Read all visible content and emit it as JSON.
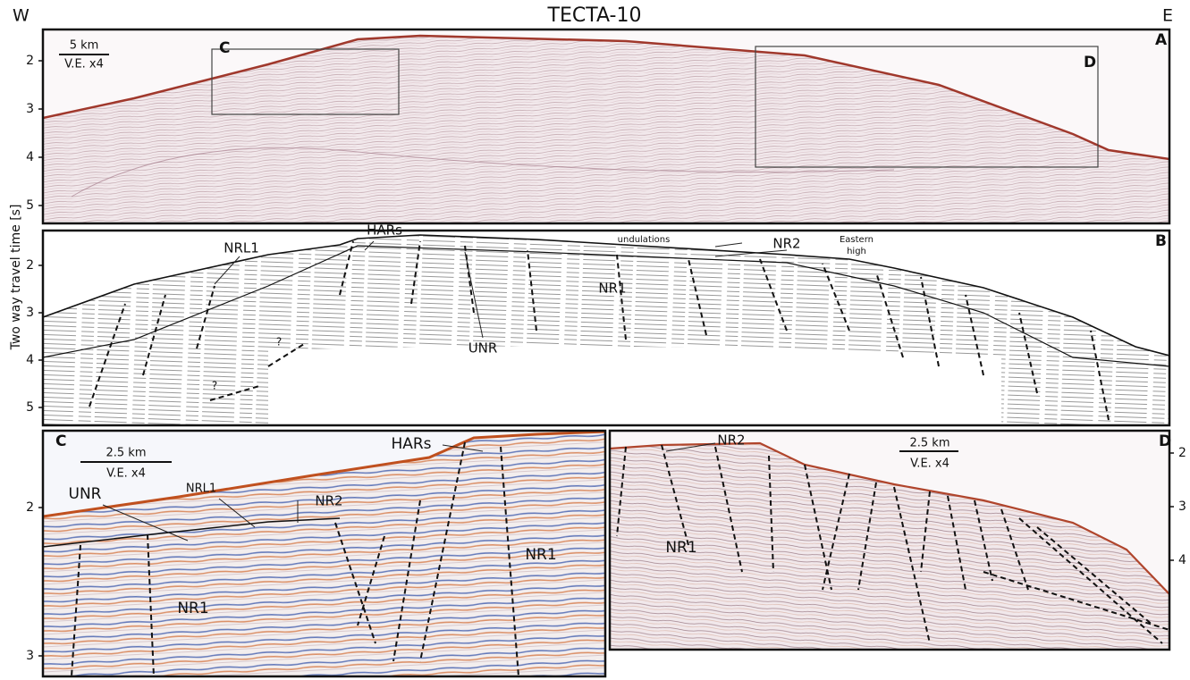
{
  "header": {
    "west": "W",
    "title": "TECTA-10",
    "east": "E"
  },
  "y_axis_label": "Two way travel time [s]",
  "panels": [
    {
      "label": "A",
      "scale": "5 km",
      "ve": "V.E. x4",
      "yticks": [
        2,
        3,
        4,
        5
      ],
      "boxes": [
        "C",
        "D"
      ]
    },
    {
      "label": "B",
      "yticks": [
        2,
        3,
        4,
        5
      ],
      "annotations": [
        "HARs",
        "NRL1",
        "undulations",
        "NR2",
        "Eastern",
        "high",
        "NR1",
        "UNR",
        "?",
        "?"
      ]
    },
    {
      "label": "C",
      "scale": "2.5 km",
      "ve": "V.E. x4",
      "yticks": [
        2,
        3
      ],
      "annotations": [
        "HARs",
        "UNR",
        "NRL1",
        "NR2",
        "NR1",
        "NR1"
      ]
    },
    {
      "label": "D",
      "scale": "2.5 km",
      "ve": "V.E. x4",
      "yticks": [
        2,
        3,
        4
      ],
      "annotations": [
        "NR2",
        "NR1"
      ]
    }
  ]
}
